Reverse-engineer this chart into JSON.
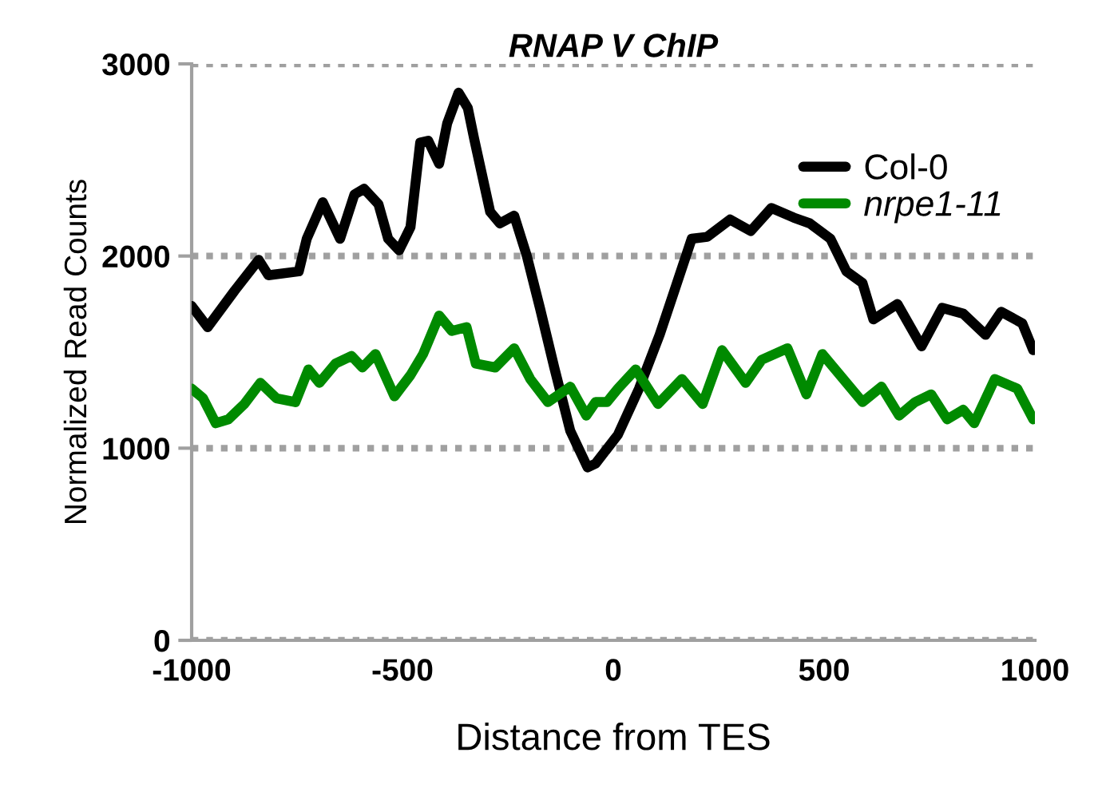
{
  "chart_data": {
    "type": "line",
    "title": "RNAP V ChIP",
    "xlabel": "Distance from TES",
    "ylabel": "Normalized Read Counts",
    "xlim": [
      -1000,
      1000
    ],
    "xticks": [
      -1000,
      -500,
      0,
      500,
      1000
    ],
    "ylim": [
      0,
      3000
    ],
    "yticks": [
      0,
      1000,
      2000,
      3000
    ],
    "grid": "y",
    "legend": "top right",
    "line_style": "solid",
    "marker": "none",
    "series": [
      {
        "name": "Col-0",
        "color": "#000000",
        "x": [
          -1000,
          -962,
          -898,
          -841,
          -818,
          -746,
          -727,
          -689,
          -648,
          -614,
          -591,
          -557,
          -534,
          -508,
          -481,
          -458,
          -439,
          -413,
          -394,
          -367,
          -345,
          -330,
          -292,
          -269,
          -235,
          -205,
          -174,
          -140,
          -102,
          -61,
          -42,
          11,
          61,
          110,
          148,
          186,
          223,
          277,
          326,
          375,
          428,
          466,
          515,
          553,
          591,
          617,
          674,
          731,
          780,
          830,
          883,
          920,
          970,
          996
        ],
        "values": [
          1740,
          1630,
          1820,
          1980,
          1900,
          1920,
          2090,
          2280,
          2090,
          2320,
          2350,
          2270,
          2090,
          2030,
          2150,
          2590,
          2600,
          2480,
          2690,
          2850,
          2770,
          2610,
          2230,
          2170,
          2210,
          2000,
          1730,
          1420,
          1090,
          900,
          920,
          1070,
          1310,
          1590,
          1840,
          2090,
          2100,
          2190,
          2130,
          2250,
          2200,
          2170,
          2090,
          1920,
          1860,
          1670,
          1750,
          1530,
          1730,
          1700,
          1590,
          1710,
          1650,
          1510
        ]
      },
      {
        "name": "nrpe1-11",
        "color": "#008a00",
        "x": [
          -1000,
          -973,
          -943,
          -913,
          -875,
          -837,
          -799,
          -754,
          -723,
          -697,
          -659,
          -621,
          -595,
          -564,
          -519,
          -481,
          -451,
          -413,
          -383,
          -348,
          -326,
          -280,
          -235,
          -197,
          -155,
          -102,
          -64,
          -42,
          -15,
          11,
          53,
          106,
          163,
          212,
          258,
          314,
          352,
          413,
          458,
          496,
          553,
          591,
          636,
          678,
          716,
          754,
          792,
          830,
          856,
          905,
          958,
          996
        ],
        "values": [
          1310,
          1260,
          1130,
          1150,
          1230,
          1340,
          1260,
          1240,
          1410,
          1340,
          1440,
          1480,
          1420,
          1490,
          1270,
          1380,
          1490,
          1690,
          1610,
          1630,
          1440,
          1420,
          1520,
          1360,
          1240,
          1320,
          1170,
          1240,
          1240,
          1310,
          1410,
          1230,
          1360,
          1230,
          1510,
          1340,
          1460,
          1520,
          1280,
          1490,
          1340,
          1240,
          1320,
          1170,
          1240,
          1280,
          1150,
          1200,
          1130,
          1360,
          1310,
          1150
        ]
      }
    ]
  }
}
